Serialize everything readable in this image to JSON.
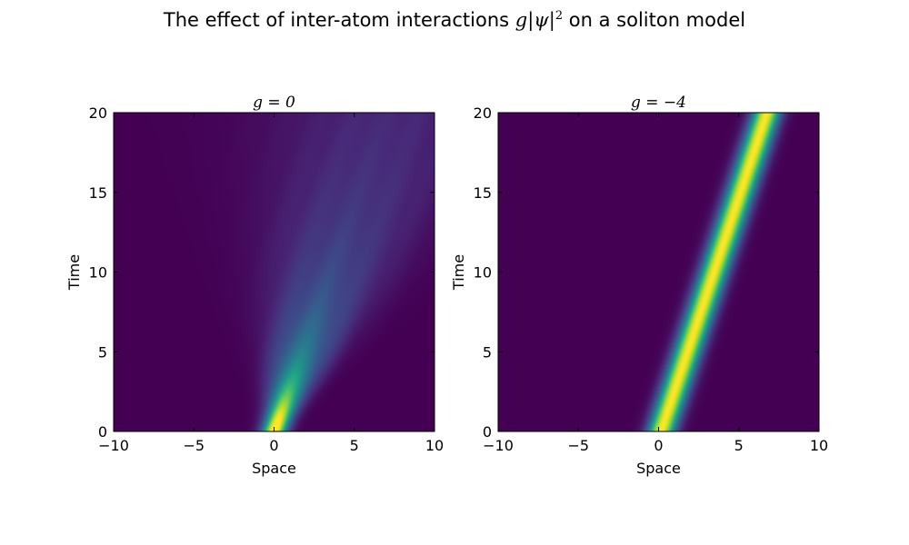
{
  "figure": {
    "title_prefix": "The effect of inter-atom interactions ",
    "title_math": "g|ψ|",
    "title_exp": "2",
    "title_suffix": " on a soliton model"
  },
  "colors": {
    "colormap": "viridis",
    "viridis_stops": [
      "#440154",
      "#482878",
      "#3e4a89",
      "#31688e",
      "#26828e",
      "#1f9e89",
      "#35b779",
      "#6ece58",
      "#b5de2b",
      "#fde725"
    ]
  },
  "chart_data": [
    {
      "type": "heatmap",
      "title": "g = 0",
      "xlabel": "Space",
      "ylabel": "Time",
      "xlim": [
        -10,
        10
      ],
      "ylim": [
        0,
        20
      ],
      "xticks": [
        -10,
        -5,
        0,
        5,
        10
      ],
      "yticks": [
        0,
        5,
        10,
        15,
        20
      ],
      "xtick_labels": [
        "−10",
        "−5",
        "0",
        "5",
        "10"
      ],
      "ytick_labels": [
        "0",
        "5",
        "10",
        "15",
        "20"
      ],
      "colormap": "viridis",
      "field": {
        "description_values": "Gaussian wave packet |psi|^2 drifting right and spreading (no interaction)",
        "x0": 0,
        "velocity": 0.35,
        "width0": 0.8,
        "dispersion": 0.22,
        "peak_intensity": 1.0
      }
    },
    {
      "type": "heatmap",
      "title": "g = −4",
      "xlabel": "Space",
      "ylabel": "Time",
      "xlim": [
        -10,
        10
      ],
      "ylim": [
        0,
        20
      ],
      "xticks": [
        -10,
        -5,
        0,
        5,
        10
      ],
      "yticks": [
        0,
        5,
        10,
        15,
        20
      ],
      "xtick_labels": [
        "−10",
        "−5",
        "0",
        "5",
        "10"
      ],
      "ytick_labels": [
        "0",
        "5",
        "10",
        "15",
        "20"
      ],
      "colormap": "viridis",
      "field": {
        "description_values": "Bright soliton |psi|^2 drifting right without spreading",
        "x0": 0.15,
        "velocity": 0.33,
        "width0": 0.85,
        "dispersion": 0.0,
        "peak_intensity": 1.0
      }
    }
  ]
}
